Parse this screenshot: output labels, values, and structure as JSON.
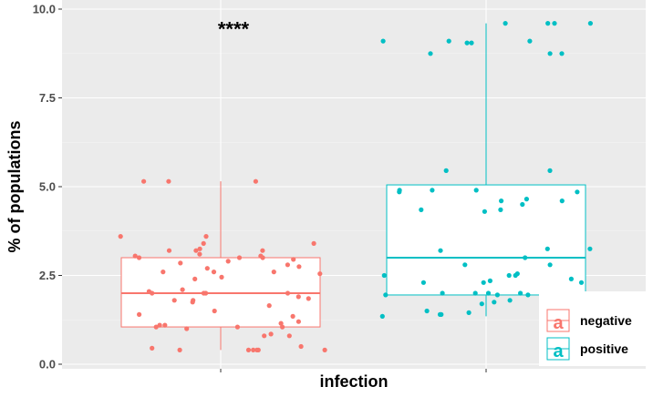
{
  "chart_data": {
    "type": "boxplot",
    "xlabel": "infection",
    "ylabel": "% of populations",
    "ylim": [
      0,
      10
    ],
    "yticks": [
      "0.0",
      "2.5",
      "5.0",
      "7.5",
      "10.0"
    ],
    "yticks_values": [
      0,
      2.5,
      5.0,
      7.5,
      10.0
    ],
    "grid": true,
    "legend_position": "bottom-right",
    "annotation": {
      "text": "****",
      "group": "negative",
      "y": 9.7
    },
    "groups": [
      {
        "name": "negative",
        "color": "#F8766D",
        "stats": {
          "min": 0.4,
          "q1": 1.05,
          "median": 2.0,
          "q3": 3.0,
          "max": 5.15
        },
        "points": [
          0.4,
          0.4,
          0.4,
          0.4,
          0.4,
          0.4,
          0.45,
          0.5,
          0.8,
          0.8,
          0.85,
          1.0,
          1.05,
          1.05,
          1.05,
          1.1,
          1.1,
          1.15,
          1.2,
          1.35,
          1.4,
          1.5,
          1.65,
          1.75,
          1.8,
          1.8,
          1.85,
          1.9,
          2.0,
          2.0,
          2.0,
          2.0,
          2.05,
          2.1,
          2.4,
          2.45,
          2.55,
          2.6,
          2.6,
          2.6,
          2.7,
          2.75,
          2.8,
          2.85,
          2.9,
          2.95,
          3.0,
          3.0,
          3.0,
          3.05,
          3.05,
          3.1,
          3.2,
          3.2,
          3.2,
          3.25,
          3.4,
          3.4,
          3.6,
          3.6,
          5.15,
          5.15,
          5.15
        ]
      },
      {
        "name": "positive",
        "color": "#00BFC4",
        "stats": {
          "min": 1.35,
          "q1": 1.95,
          "median": 3.0,
          "q3": 5.05,
          "max": 9.6
        },
        "points": [
          1.35,
          1.4,
          1.4,
          1.45,
          1.5,
          1.55,
          1.7,
          1.75,
          1.75,
          1.8,
          1.95,
          1.95,
          1.95,
          2.0,
          2.0,
          2.0,
          2.0,
          2.3,
          2.3,
          2.3,
          2.35,
          2.4,
          2.5,
          2.5,
          2.5,
          2.55,
          2.8,
          2.8,
          3.0,
          3.2,
          3.25,
          3.25,
          4.3,
          4.35,
          4.35,
          4.5,
          4.6,
          4.6,
          4.65,
          4.85,
          4.85,
          4.9,
          4.9,
          4.9,
          5.45,
          5.45,
          8.75,
          8.75,
          8.75,
          9.05,
          9.05,
          9.1,
          9.1,
          9.1,
          9.6,
          9.6,
          9.6,
          9.6
        ]
      }
    ]
  }
}
